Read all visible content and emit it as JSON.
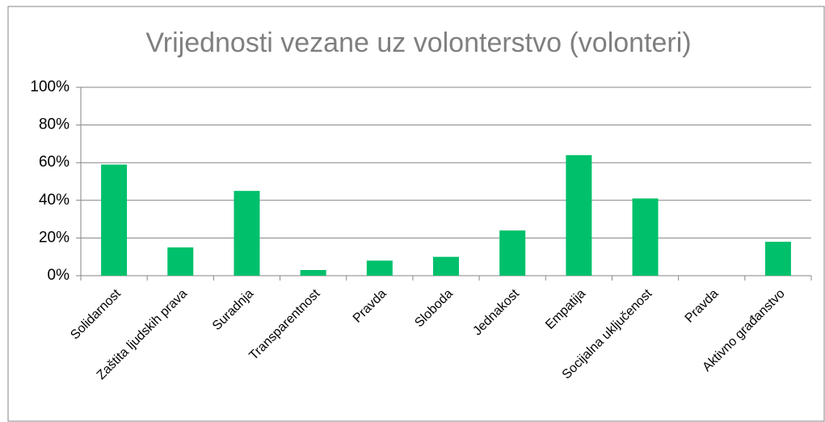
{
  "chart_data": {
    "type": "bar",
    "title": "Vrijednosti vezane uz volonterstvo (volonteri)",
    "categories": [
      "Solidarnost",
      "Zaštita ljudskih prava",
      "Suradnja",
      "Transparentnost",
      "Pravda",
      "Sloboda",
      "Jednakost",
      "Empatija",
      "Socijalna uključenost",
      "Pravda",
      "Aktivno građanstvo"
    ],
    "values": [
      59,
      15,
      45,
      3,
      8,
      10,
      24,
      64,
      41,
      0,
      18
    ],
    "color": "#00c06b",
    "ylim": [
      0,
      100
    ],
    "yticks": [
      {
        "value": 0,
        "label": "0%"
      },
      {
        "value": 20,
        "label": "20%"
      },
      {
        "value": 40,
        "label": "40%"
      },
      {
        "value": 60,
        "label": "60%"
      },
      {
        "value": 80,
        "label": "80%"
      },
      {
        "value": 100,
        "label": "100%"
      }
    ],
    "grid": true
  }
}
